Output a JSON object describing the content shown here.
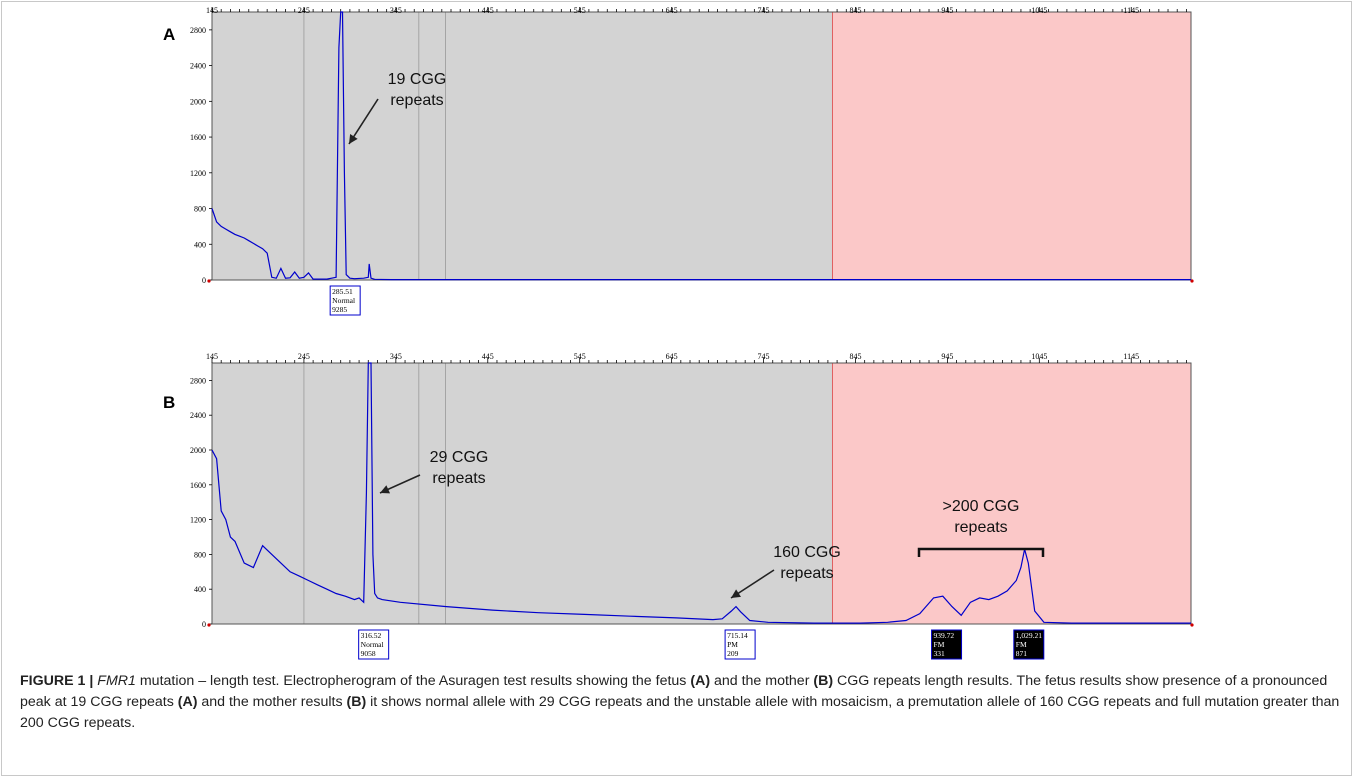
{
  "colors": {
    "trace": "#0000cc",
    "panel_gray": "#d3d3d3",
    "highlight_pink": "#fbc8c8",
    "highlight_border": "#e06060",
    "gridline": "#9a9a9a",
    "peak_label_fill": "#000000"
  },
  "x_ticks": [
    "145",
    "245",
    "345",
    "445",
    "545",
    "645",
    "745",
    "845",
    "945",
    "1045",
    "1145"
  ],
  "y_ticks": [
    "0",
    "400",
    "800",
    "1200",
    "1600",
    "2000",
    "2400",
    "2800"
  ],
  "chart_data": [
    {
      "panel": "A",
      "type": "line",
      "xlim": [
        145,
        1210
      ],
      "ylim": [
        0,
        3000
      ],
      "shaded_region": [
        820,
        1210
      ],
      "series": [
        {
          "x": [
            145,
            150,
            155,
            160,
            165,
            170,
            175,
            180,
            185,
            190,
            195,
            200,
            205,
            210,
            215,
            220,
            225,
            230,
            235,
            240,
            245,
            250,
            255,
            260,
            270,
            280,
            283,
            285,
            285.5,
            287,
            289,
            291,
            295,
            300,
            310,
            315,
            316,
            318,
            322,
            340,
            400,
            600,
            800,
            1000,
            1210
          ],
          "y": [
            800,
            650,
            600,
            570,
            540,
            510,
            490,
            470,
            440,
            410,
            380,
            350,
            300,
            30,
            20,
            130,
            20,
            25,
            90,
            20,
            30,
            80,
            10,
            10,
            10,
            30,
            2600,
            3000,
            3000,
            3000,
            1200,
            60,
            20,
            15,
            20,
            30,
            180,
            20,
            8,
            5,
            5,
            5,
            5,
            5,
            5
          ]
        }
      ],
      "peak_labels": [
        {
          "size": "285.51",
          "call": "Normal",
          "height": "9285",
          "x": 285.51,
          "style": "outline"
        }
      ],
      "annotations": [
        {
          "line1": "19 CGG",
          "line2": "repeats"
        }
      ]
    },
    {
      "panel": "B",
      "type": "line",
      "xlim": [
        145,
        1210
      ],
      "ylim": [
        0,
        3000
      ],
      "shaded_region": [
        820,
        1210
      ],
      "series": [
        {
          "x": [
            145,
            150,
            155,
            160,
            165,
            170,
            180,
            190,
            200,
            210,
            220,
            230,
            240,
            250,
            260,
            270,
            280,
            290,
            300,
            305,
            310,
            313,
            315,
            316.5,
            318,
            320,
            322,
            325,
            330,
            350,
            400,
            450,
            500,
            550,
            600,
            650,
            690,
            700,
            710,
            715,
            720,
            730,
            750,
            800,
            850,
            880,
            900,
            915,
            930,
            940,
            950,
            960,
            970,
            980,
            990,
            1000,
            1010,
            1020,
            1025,
            1029,
            1033,
            1040,
            1050,
            1080,
            1210
          ],
          "y": [
            2000,
            1900,
            1300,
            1200,
            1000,
            950,
            700,
            650,
            900,
            800,
            700,
            600,
            550,
            500,
            450,
            400,
            350,
            320,
            280,
            300,
            250,
            1500,
            3000,
            3000,
            3000,
            800,
            350,
            300,
            280,
            250,
            200,
            160,
            130,
            110,
            90,
            70,
            50,
            60,
            150,
            200,
            140,
            40,
            20,
            10,
            10,
            20,
            40,
            120,
            300,
            320,
            200,
            100,
            250,
            300,
            280,
            320,
            380,
            500,
            650,
            860,
            700,
            150,
            20,
            10,
            10
          ]
        }
      ],
      "peak_labels": [
        {
          "size": "316.52",
          "call": "Normal",
          "height": "9058",
          "x": 316.52,
          "style": "outline"
        },
        {
          "size": "715.14",
          "call": "PM",
          "height": "209",
          "x": 715.14,
          "style": "outline"
        },
        {
          "size": "939.72",
          "call": "FM",
          "height": "331",
          "x": 939.72,
          "style": "filled"
        },
        {
          "size": "1,029.21",
          "call": "FM",
          "height": "871",
          "x": 1029.21,
          "style": "filled"
        }
      ],
      "annotations": [
        {
          "line1": "29 CGG",
          "line2": "repeats"
        },
        {
          "line1": "160 CGG",
          "line2": "repeats"
        },
        {
          "line1": ">200 CGG",
          "line2": "repeats"
        }
      ]
    }
  ],
  "caption": {
    "figure_label": "FIGURE 1 |",
    "gene": "FMR1",
    "seg1": " mutation – length test. Electropherogram of the Asuragen test results showing the fetus ",
    "ref_a1": "(A)",
    "seg2": " and the mother ",
    "ref_b1": "(B)",
    "seg3": " CGG repeats length results. The fetus results show presence of a pronounced peak at 19 CGG repeats ",
    "ref_a2": "(A)",
    "seg4": " and the mother results ",
    "ref_b2": "(B)",
    "seg5": " it shows normal allele with 29 CGG repeats and the unstable allele with mosaicism, a premutation allele of 160 CGG repeats and full mutation greater than 200 CGG repeats."
  }
}
